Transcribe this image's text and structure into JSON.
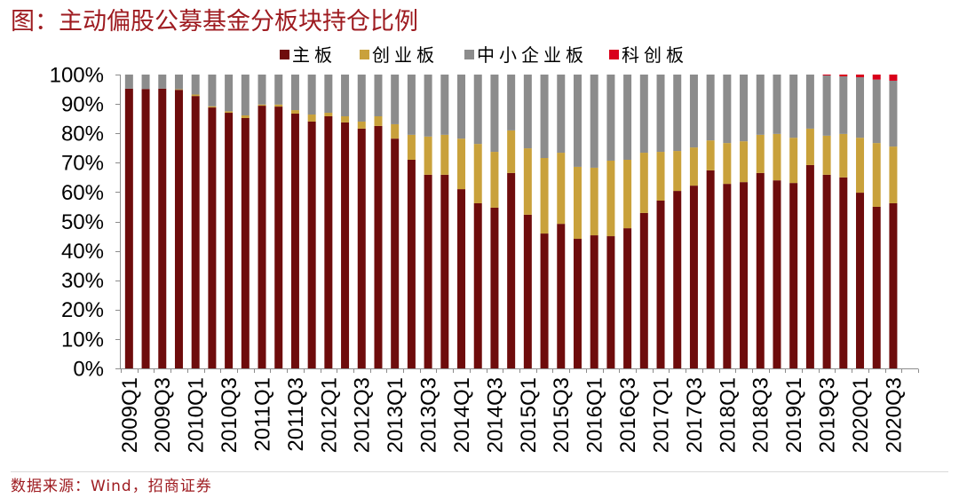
{
  "chart_data": {
    "type": "bar",
    "stacked": true,
    "title": "图：主动偏股公募基金分板块持仓比例",
    "note": "数据来源：Wind，招商证券",
    "xlabel": "",
    "ylabel": "",
    "ylim": [
      0,
      100
    ],
    "grid": false,
    "legend_position": "top-center",
    "y_ticks": [
      0,
      10,
      20,
      30,
      40,
      50,
      60,
      70,
      80,
      90,
      100
    ],
    "y_tick_labels": [
      "0%",
      "10%",
      "20%",
      "30%",
      "40%",
      "50%",
      "60%",
      "70%",
      "80%",
      "90%",
      "100%"
    ],
    "x_axis": {
      "bars_per_tick": 2,
      "tick_labels": [
        "2009Q1",
        "2009Q3",
        "2010Q1",
        "2010Q3",
        "2011Q1",
        "2011Q3",
        "2012Q1",
        "2012Q3",
        "2013Q1",
        "2013Q3",
        "2014Q1",
        "2014Q3",
        "2015Q1",
        "2015Q3",
        "2016Q1",
        "2016Q3",
        "2017Q1",
        "2017Q3",
        "2018Q1",
        "2018Q3",
        "2019Q1",
        "2019Q3",
        "2020Q1",
        "2020Q3"
      ]
    },
    "series": [
      {
        "name": "主板",
        "color": "#6E0C0C",
        "values": [
          95.2,
          95.1,
          95.2,
          94.8,
          92.7,
          88.8,
          87.0,
          85.2,
          89.4,
          89.1,
          86.7,
          84.0,
          85.8,
          83.7,
          81.6,
          82.5,
          78.2,
          71.0,
          65.9,
          65.9,
          61.0,
          56.2,
          54.7,
          66.5,
          52.3,
          45.9,
          49.2,
          44.1,
          45.3,
          45.0,
          47.7,
          52.9,
          57.1,
          60.4,
          62.2,
          67.4,
          62.8,
          63.4,
          66.5,
          64.0,
          63.1,
          69.2,
          65.9,
          65.0,
          59.8,
          55.0,
          56.2
        ]
      },
      {
        "name": "创业板",
        "color": "#C9A13B",
        "values": [
          0,
          0,
          0,
          0.2,
          0.5,
          0.4,
          0.5,
          0.9,
          0.4,
          0.7,
          1.2,
          2.4,
          1.2,
          2.1,
          2.4,
          3.3,
          4.9,
          8.5,
          13.0,
          13.6,
          17.2,
          20.2,
          19.0,
          14.5,
          22.6,
          25.7,
          24.2,
          24.5,
          23.0,
          25.7,
          23.3,
          20.5,
          16.6,
          13.6,
          13.0,
          10.2,
          13.9,
          13.9,
          13.0,
          15.8,
          15.4,
          12.4,
          13.3,
          14.8,
          18.7,
          21.7,
          19.3
        ]
      },
      {
        "name": "中小企业板",
        "color": "#8C8C8C",
        "values": [
          4.8,
          4.9,
          4.8,
          5.0,
          6.8,
          10.8,
          12.5,
          13.9,
          10.2,
          10.2,
          12.1,
          13.6,
          13.0,
          14.2,
          16.0,
          14.2,
          16.9,
          20.5,
          21.1,
          20.5,
          21.8,
          23.6,
          26.3,
          19.0,
          25.1,
          28.4,
          26.6,
          31.4,
          31.7,
          29.3,
          29.0,
          26.6,
          26.3,
          26.0,
          24.8,
          22.4,
          23.3,
          22.7,
          20.5,
          20.2,
          21.5,
          18.4,
          20.5,
          19.6,
          20.6,
          21.6,
          22.4
        ]
      },
      {
        "name": "科创板",
        "color": "#D9001B",
        "values": [
          0,
          0,
          0,
          0,
          0,
          0,
          0,
          0,
          0,
          0,
          0,
          0,
          0,
          0,
          0,
          0,
          0,
          0,
          0,
          0,
          0,
          0,
          0,
          0,
          0,
          0,
          0,
          0,
          0,
          0,
          0,
          0,
          0,
          0,
          0,
          0,
          0,
          0,
          0,
          0,
          0,
          0,
          0.3,
          0.6,
          0.9,
          1.7,
          2.1
        ]
      }
    ]
  },
  "colors": {
    "title": "#9E1B20",
    "source": "#9E1B20",
    "axis": "#8C8C8C"
  }
}
